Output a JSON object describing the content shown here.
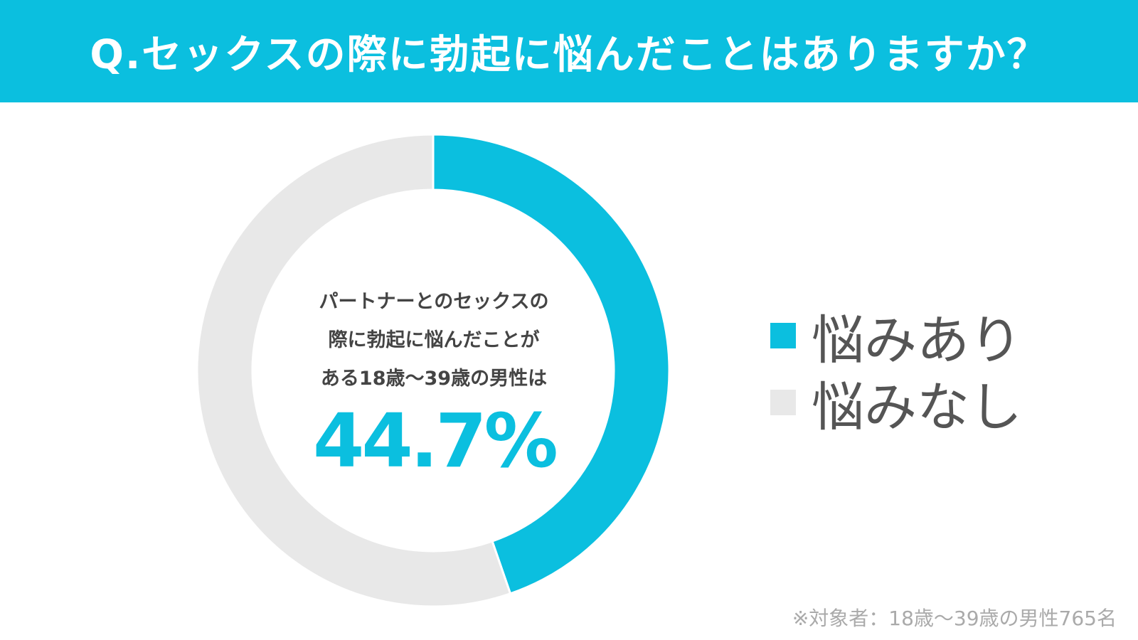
{
  "header": {
    "title": "Q.セックスの際に勃起に悩んだことはありますか？"
  },
  "center": {
    "lines": [
      "パートナーとのセックスの",
      "際に勃起に悩んだことが",
      "ある18歳〜39歳の男性は"
    ],
    "value": "44.7%"
  },
  "legend": [
    {
      "label": "悩みあり",
      "color": "#0bbfdf"
    },
    {
      "label": "悩みなし",
      "color": "#e8e8e8"
    }
  ],
  "footnote": "※対象者：18歳〜39歳の男性765名",
  "chart_data": {
    "type": "pie",
    "categories": [
      "悩みあり",
      "悩みなし"
    ],
    "values": [
      44.7,
      55.3
    ],
    "colors": [
      "#0bbfdf",
      "#e8e8e8"
    ],
    "donut": true,
    "start": "top",
    "direction": "clockwise",
    "legend_position": "right"
  }
}
